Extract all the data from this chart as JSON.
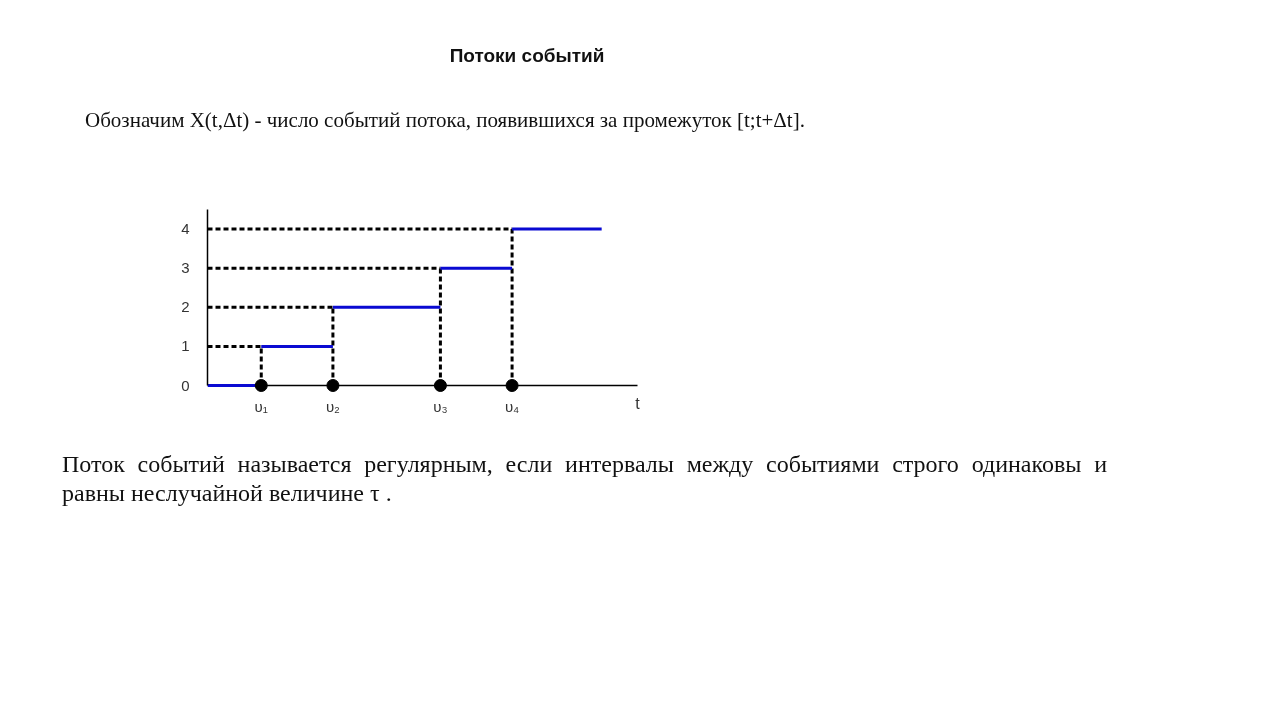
{
  "chart_data": {
    "type": "line",
    "title": "Потоки событий",
    "subtitle": "Обозначим X(t,Δt) - число событий потока, появившихся за промежуток [t;t+Δt].",
    "xlabel": "t",
    "annotations": [
      "Поток событий называется регулярным, если интервалы между событиями строго одинаковы и равны неслучайной величине τ ."
    ],
    "categories": [
      null,
      null,
      null,
      "υ₁",
      null,
      null,
      null,
      "υ₂",
      null,
      null,
      null,
      null,
      null,
      "υ₃",
      null,
      null,
      null,
      "υ₄",
      null,
      null,
      null,
      null,
      null,
      null,
      null
    ],
    "ylim": [
      0,
      4.5
    ],
    "yticks": [
      0,
      1,
      2,
      3,
      4
    ],
    "grid": false,
    "series": [
      {
        "color": "#000000",
        "line_style": "dashed",
        "marker": "none",
        "values": [
          1,
          1,
          1,
          1,
          null,
          null,
          null,
          null,
          null,
          null,
          null,
          null,
          null,
          null,
          null,
          null,
          null,
          null,
          null,
          null,
          null,
          null,
          null,
          null,
          null
        ]
      },
      {
        "color": "#000000",
        "line_style": "dashed",
        "marker": "none",
        "values": [
          2,
          2,
          2,
          2,
          2,
          2,
          2,
          2,
          null,
          null,
          null,
          null,
          null,
          null,
          null,
          null,
          null,
          null,
          null,
          null,
          null,
          null,
          null,
          null,
          null
        ]
      },
      {
        "color": "#000000",
        "line_style": "dashed",
        "marker": "none",
        "values": [
          3,
          3,
          3,
          3,
          3,
          3,
          3,
          3,
          3,
          3,
          3,
          3,
          3,
          3,
          null,
          null,
          null,
          null,
          null,
          null,
          null,
          null,
          null,
          null,
          null
        ]
      },
      {
        "color": "#000000",
        "line_style": "dashed",
        "marker": "none",
        "values": [
          4,
          4,
          4,
          4,
          4,
          4,
          4,
          4,
          4,
          4,
          4,
          4,
          4,
          4,
          4,
          4,
          4,
          4,
          null,
          null,
          null,
          null,
          null,
          null,
          null
        ]
      },
      {
        "color": "#000000",
        "line_style": "dashed",
        "marker": "none",
        "x": [
          "υ₁",
          "υ₁",
          "υ₁",
          "υ₂",
          "υ₂",
          "υ₂",
          "υ₃",
          "υ₃",
          "υ₃",
          "υ₄",
          "υ₄"
        ],
        "values": [
          0,
          1,
          null,
          0,
          2,
          null,
          0,
          3,
          null,
          0,
          4
        ]
      },
      {
        "color": "#0a0ad2",
        "line_style": "solid",
        "marker": "none",
        "values": [
          0,
          0,
          0,
          0,
          null,
          null,
          null,
          2,
          2,
          2,
          2,
          2,
          2,
          2,
          null,
          null,
          null,
          4,
          4,
          4,
          4,
          4,
          4,
          null,
          null
        ]
      },
      {
        "color": "#0a0ad2",
        "line_style": "solid",
        "marker": "none",
        "values": [
          null,
          null,
          null,
          1,
          1,
          1,
          1,
          1,
          null,
          null,
          null,
          null,
          null,
          3,
          3,
          3,
          3,
          3,
          null,
          null,
          null,
          null,
          null,
          null,
          null
        ]
      },
      {
        "type": "scatter",
        "color": "#000000",
        "marker": "circle",
        "x": [
          "υ₁",
          "υ₂",
          "υ₃",
          "υ₄"
        ],
        "values": [
          0,
          0,
          0,
          0
        ]
      }
    ]
  }
}
